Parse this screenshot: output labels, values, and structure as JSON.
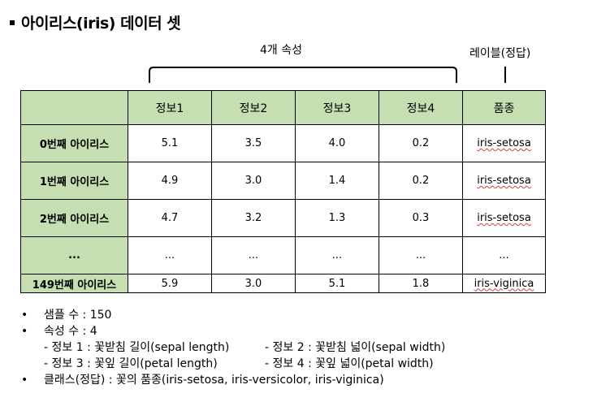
{
  "title": "아이리스(iris) 데이터 셋",
  "features_label": "4개 속성",
  "label_header": "레이블(정답)",
  "table": {
    "columns": [
      "",
      "정보1",
      "정보2",
      "정보3",
      "정보4",
      "품종"
    ],
    "rows": [
      [
        "0번째 아이리스",
        "5.1",
        "3.5",
        "4.0",
        "0.2",
        "iris-setosa"
      ],
      [
        "1번째 아이리스",
        "4.9",
        "3.0",
        "1.4",
        "0.2",
        "iris-setosa"
      ],
      [
        "2번째 아이리스",
        "4.7",
        "3.2",
        "1.3",
        "0.3",
        "iris-setosa"
      ],
      [
        "...",
        "...",
        "...",
        "...",
        "...",
        "..."
      ],
      [
        "149번째 아이리스",
        "5.9",
        "3.0",
        "5.1",
        "1.8",
        "iris-viginica"
      ]
    ]
  },
  "notes": {
    "samples": "샘플 수 : 150",
    "attrs": "속성 수 : 4",
    "attr1": "- 정보 1 : 꽃받침 길이(sepal length)",
    "attr2": "- 정보 2 : 꽃받침 넓이(sepal width)",
    "attr3": "- 정보 3 : 꽃잎 길이(petal length)",
    "attr4": "- 정보 4 : 꽃잎 넓이(petal width)",
    "classes": "클래스(정답) : 꽃의 품종(iris-setosa, iris-versicolor, iris-viginica)",
    "bullet": "•"
  }
}
